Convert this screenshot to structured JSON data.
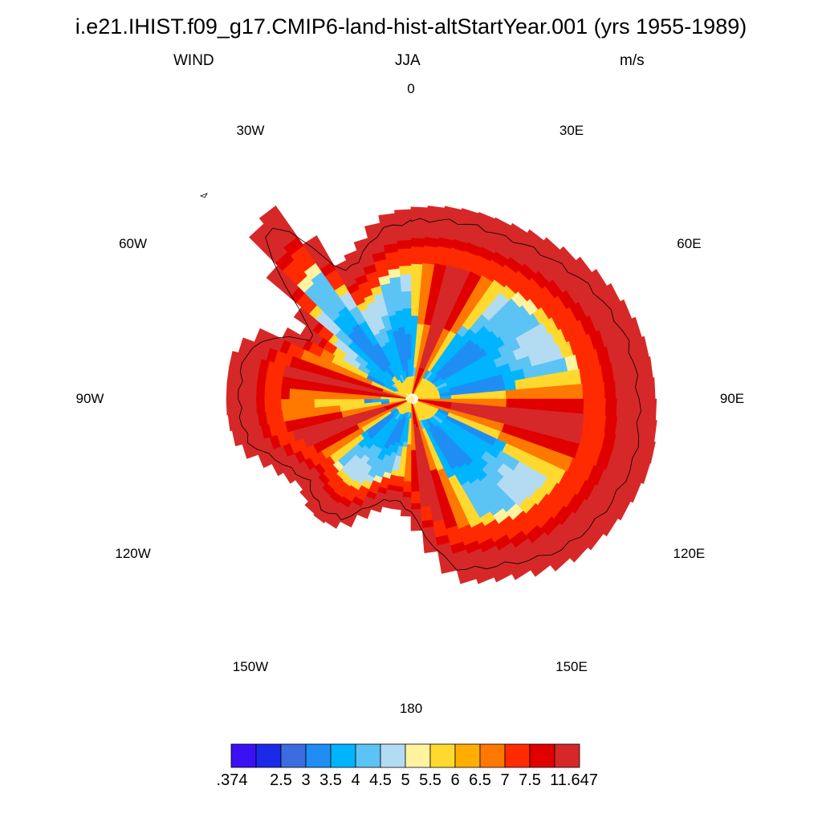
{
  "header": {
    "title": "i.e21.IHIST.f09_g17.CMIP6-land-hist-altStartYear.001 (yrs 1955-1989)",
    "variable": "WIND",
    "season": "JJA",
    "units": "m/s"
  },
  "map": {
    "projection": "south-polar-stereographic",
    "longitude_labels": [
      "0",
      "30E",
      "60E",
      "90E",
      "120E",
      "150E",
      "180",
      "150W",
      "120W",
      "90W",
      "60W",
      "30W"
    ],
    "coastline_color": "#000000"
  },
  "colorbar": {
    "colors": [
      "#3b10f5",
      "#1a2ae8",
      "#3b6de0",
      "#1e8ef5",
      "#00b4ff",
      "#5cc3f5",
      "#b3dcf2",
      "#fff3a0",
      "#ffd92e",
      "#ffae00",
      "#ff7800",
      "#ff2a00",
      "#e00000",
      "#d62828"
    ],
    "labels": [
      ".374",
      "2.5",
      "3",
      "3.5",
      "4",
      "4.5",
      "5",
      "5.5",
      "6",
      "6.5",
      "7",
      "7.5",
      "11.647"
    ]
  }
}
